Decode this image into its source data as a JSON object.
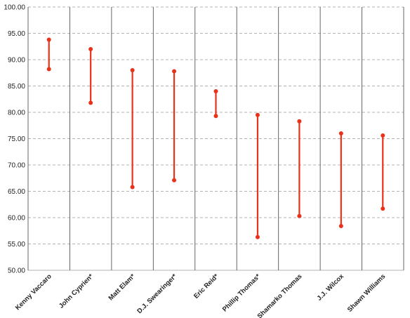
{
  "chart_data": {
    "type": "range",
    "title": "",
    "xlabel": "",
    "ylabel": "",
    "ylim": [
      50,
      100
    ],
    "ytick_step": 5,
    "ytick_labels": [
      "50.00",
      "55.00",
      "60.00",
      "65.00",
      "70.00",
      "75.00",
      "80.00",
      "85.00",
      "90.00",
      "95.00",
      "100.00"
    ],
    "grid": {
      "horizontal": "dashed",
      "vertical_separators": true
    },
    "color": "#e8321a",
    "categories": [
      "Kenny Vaccaro",
      "John Cyprien*",
      "Matt Elam*",
      "D.J. Swearinger*",
      "Eric Reid*",
      "Phillip Thomas*",
      "Shamarko Thomas",
      "J.J. Wilcox",
      "Shawn Williams"
    ],
    "series": [
      {
        "values": [
          93.8,
          92.0,
          88.0,
          87.8,
          84.0,
          79.5,
          78.3,
          76.0,
          75.6
        ]
      },
      {
        "values": [
          88.2,
          81.8,
          65.8,
          67.1,
          79.3,
          56.3,
          60.3,
          58.4,
          61.7
        ]
      }
    ]
  }
}
